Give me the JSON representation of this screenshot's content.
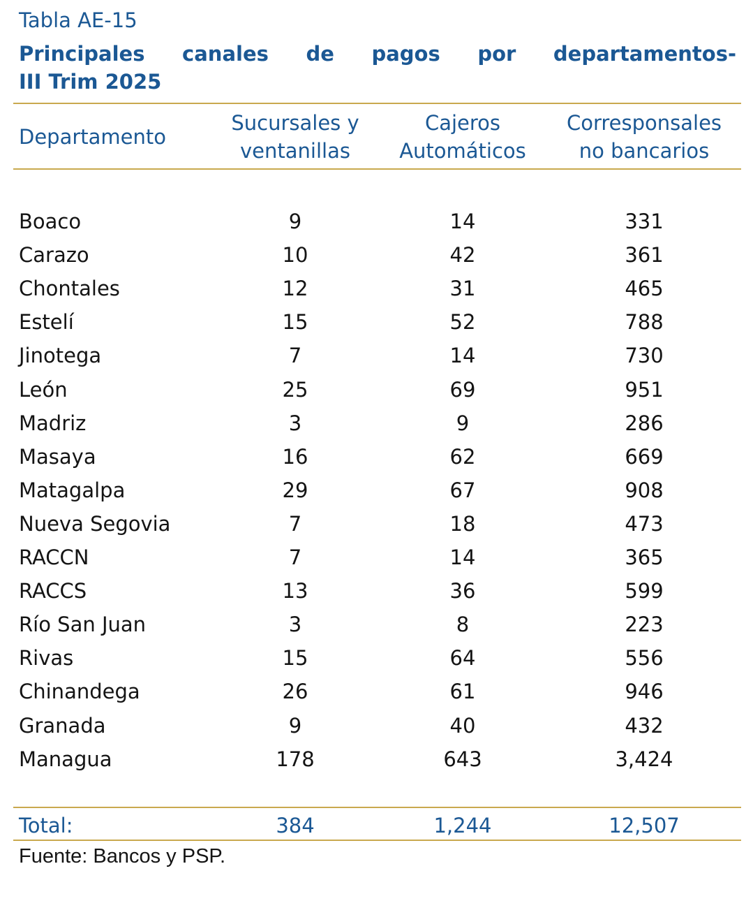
{
  "header": {
    "title": "Tabla AE-15",
    "subtitle": [
      "Principales canales de pagos por departamentos-",
      "III Trim 2025"
    ]
  },
  "table": {
    "columns": [
      [
        "Departamento"
      ],
      [
        "Sucursales y",
        "ventanillas"
      ],
      [
        "Cajeros",
        "Automáticos"
      ],
      [
        "Corresponsales",
        "no bancarios"
      ]
    ],
    "rows": [
      [
        "Boaco",
        "9",
        "14",
        "331"
      ],
      [
        "Carazo",
        "10",
        "42",
        "361"
      ],
      [
        "Chontales",
        "12",
        "31",
        "465"
      ],
      [
        "Estelí",
        "15",
        "52",
        "788"
      ],
      [
        "Jinotega",
        "7",
        "14",
        "730"
      ],
      [
        "León",
        "25",
        "69",
        "951"
      ],
      [
        "Madriz",
        "3",
        "9",
        "286"
      ],
      [
        "Masaya",
        "16",
        "62",
        "669"
      ],
      [
        "Matagalpa",
        "29",
        "67",
        "908"
      ],
      [
        "Nueva Segovia",
        "7",
        "18",
        "473"
      ],
      [
        "RACCN",
        "7",
        "14",
        "365"
      ],
      [
        "RACCS",
        "13",
        "36",
        "599"
      ],
      [
        "Río San Juan",
        "3",
        "8",
        "223"
      ],
      [
        "Rivas",
        "15",
        "64",
        "556"
      ],
      [
        "Chinandega",
        "26",
        "61",
        "946"
      ],
      [
        "Granada",
        "9",
        "40",
        "432"
      ],
      [
        "Managua",
        "178",
        "643",
        "3,424"
      ]
    ],
    "total": [
      "Total:",
      "384",
      "1,244",
      "12,507"
    ]
  },
  "source": "Fuente: Bancos y PSP."
}
